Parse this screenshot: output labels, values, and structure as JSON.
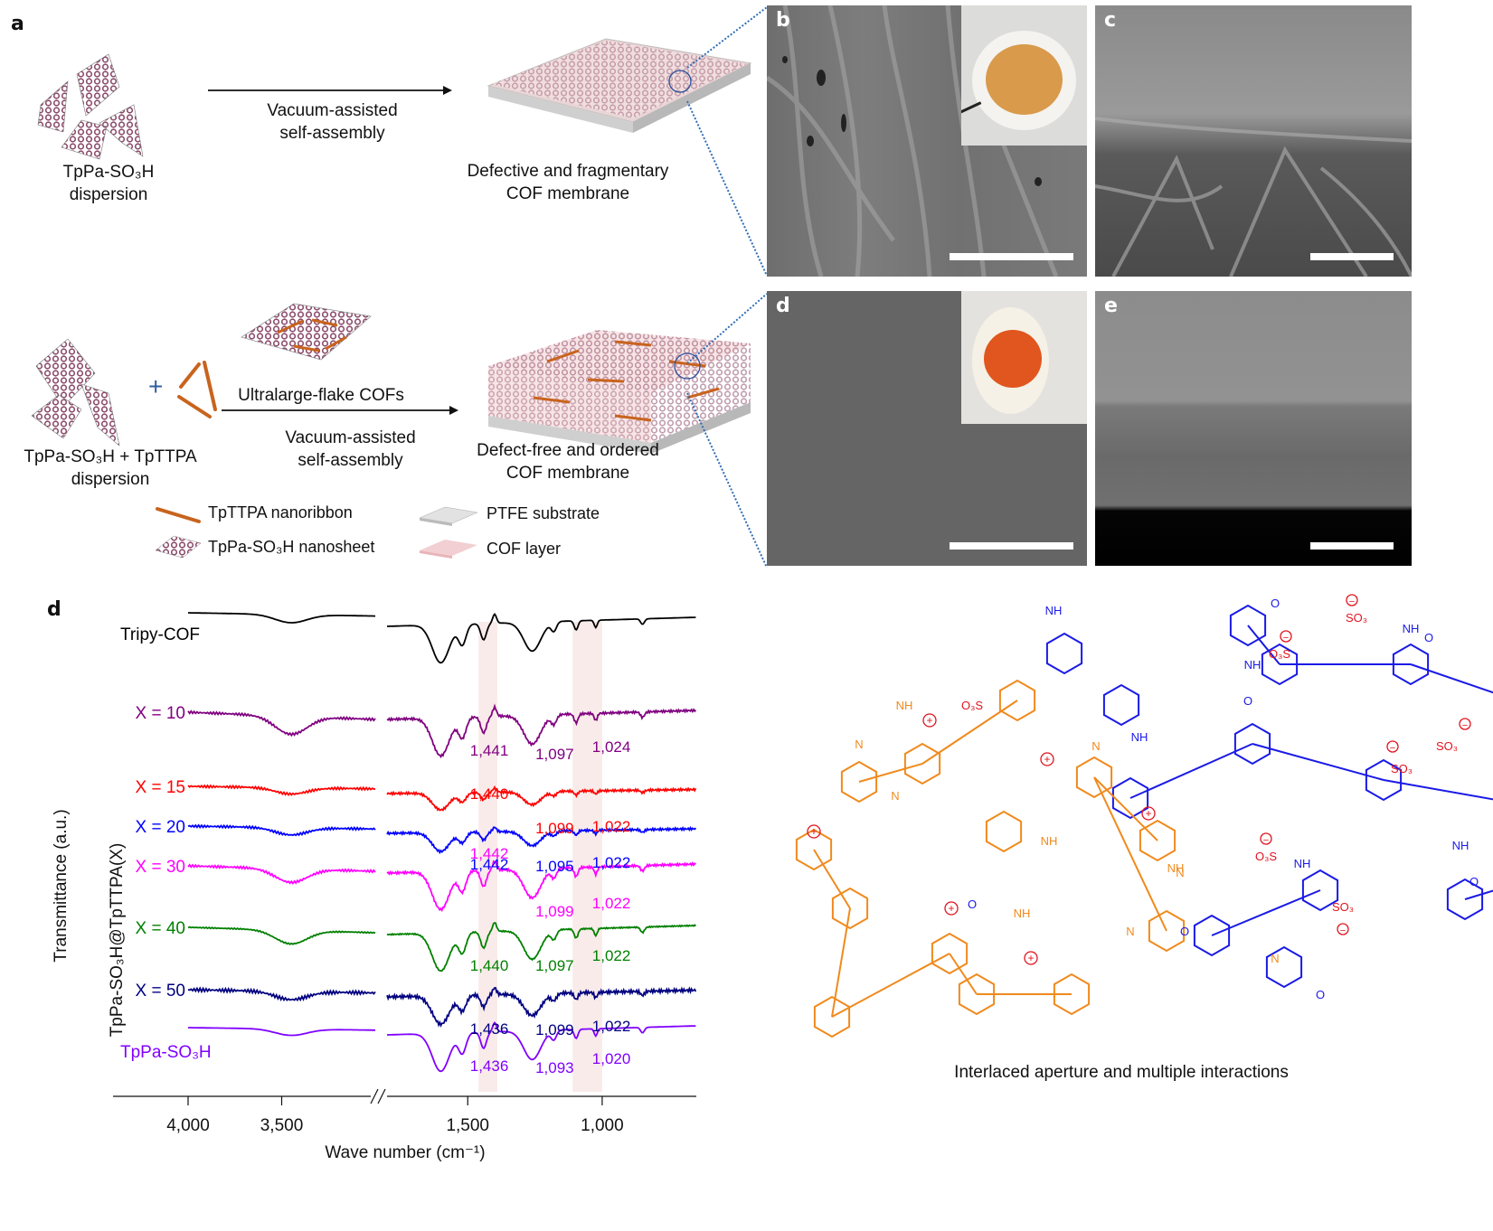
{
  "panel_a": {
    "letter": "a",
    "top_row": {
      "start_label_line1": "TpPa-SO₃H",
      "start_label_line2": "dispersion",
      "arrow_label_line1": "Vacuum-assisted",
      "arrow_label_line2": "self-assembly",
      "end_label_line1": "Defective and fragmentary",
      "end_label_line2": "COF membrane"
    },
    "bottom_row": {
      "start_label_line1": "TpPa-SO₃H + TpTTPA",
      "start_label_line2": "dispersion",
      "plus": "+",
      "above_arrow_label": "Ultralarge-flake COFs",
      "arrow_label_line1": "Vacuum-assisted",
      "arrow_label_line2": "self-assembly",
      "end_label_line1": "Defect-free and ordered",
      "end_label_line2": "COF membrane"
    },
    "legend": [
      {
        "key": "nanoribbon",
        "label": "TpTTPA nanoribbon"
      },
      {
        "key": "nanosheet",
        "label": "TpPa-SO₃H nanosheet"
      },
      {
        "key": "substrate",
        "label": "PTFE substrate"
      },
      {
        "key": "cof-layer",
        "label": "COF layer"
      }
    ],
    "colors": {
      "cof_pink": "#e8b4b8",
      "nanoribbon": "#c8641e",
      "zoom_lines": "#2f6db5"
    }
  },
  "sem_panels": [
    {
      "letter": "b",
      "desc": "top-surface SEM, defective membrane",
      "inset": "orange membrane photo"
    },
    {
      "letter": "c",
      "desc": "cross-section SEM, defective membrane"
    },
    {
      "letter": "d",
      "desc": "top-surface SEM, defect-free membrane",
      "inset": "red-orange membrane photo"
    },
    {
      "letter": "e",
      "desc": "cross-section SEM, defect-free membrane"
    }
  ],
  "panel_d_structure": {
    "caption": "Interlaced aperture and multiple interactions",
    "colors": {
      "tripy_cof": "#f08a1c",
      "tppa_so3h": "#1a1ae6",
      "charges": "#e0141e"
    },
    "labels": {
      "so3": "SO₃",
      "o3s": "O₃S",
      "nh": "NH",
      "hn": "HN",
      "n": "N",
      "o": "O",
      "plus": "+",
      "minus": "−"
    }
  },
  "chart_data": {
    "type": "line",
    "panel_letter": "d",
    "title": "",
    "xlabel": "Wave number (cm⁻¹)",
    "ylabel": "Transmittance (a.u.)",
    "ylabel2": "TpPa-SO₃H@TpTTPA(X)",
    "x_ticks": [
      "4,000",
      "3,500",
      "1,500",
      "1,000"
    ],
    "x_segments": [
      [
        4000,
        3000
      ],
      [
        1800,
        650
      ]
    ],
    "axis_break": true,
    "highlight_bands": [
      [
        1460,
        1390
      ],
      [
        1110,
        1000
      ]
    ],
    "series": [
      {
        "name": "Tripy-COF",
        "label": "Tripy-COF",
        "color": "#000000",
        "peaks": []
      },
      {
        "name": "X = 10",
        "label": "X = 10",
        "color": "#800080",
        "peaks": [
          "1,441",
          "1,097",
          "1,024"
        ]
      },
      {
        "name": "X = 15",
        "label": "X = 15",
        "color": "#ff0000",
        "peaks": [
          "1,440",
          "1,099",
          "1,022"
        ]
      },
      {
        "name": "X = 20",
        "label": "X = 20",
        "color": "#0000ff",
        "peaks": [
          "1,442",
          "1,095",
          "1,022"
        ]
      },
      {
        "name": "X = 30",
        "label": "X = 30",
        "color": "#ff00ff",
        "peaks": [
          "1,442",
          "1,099",
          "1,022"
        ]
      },
      {
        "name": "X = 40",
        "label": "X = 40",
        "color": "#008000",
        "peaks": [
          "1,440",
          "1,097",
          "1,022"
        ]
      },
      {
        "name": "X = 50",
        "label": "X = 50",
        "color": "#000080",
        "peaks": [
          "1,436",
          "1,099",
          "1,022"
        ]
      },
      {
        "name": "TpPa-SO3H",
        "label": "TpPa-SO₃H",
        "color": "#8000ff",
        "peaks": [
          "1,436",
          "1,093",
          "1,020"
        ]
      }
    ]
  }
}
